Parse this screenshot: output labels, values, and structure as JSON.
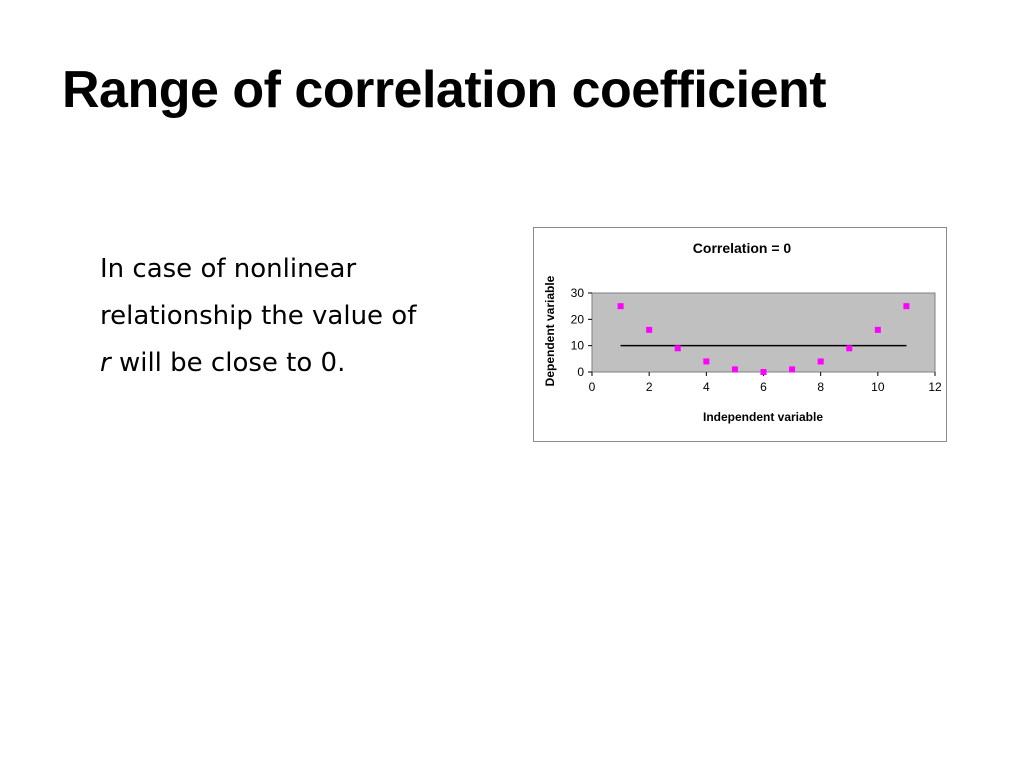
{
  "slide": {
    "title": "Range of correlation coefficient",
    "body_line1": "In case of nonlinear",
    "body_line2": "relationship the value of",
    "body_italic": "r",
    "body_line3_rest": " will be close to 0."
  },
  "chart_data": {
    "type": "scatter",
    "title": "Correlation = 0",
    "xlabel": "Independent variable",
    "ylabel": "Dependent variable",
    "xlim": [
      0,
      12
    ],
    "ylim": [
      0,
      30
    ],
    "xticks": [
      0,
      2,
      4,
      6,
      8,
      10,
      12
    ],
    "yticks": [
      0,
      10,
      20,
      30
    ],
    "plot_background": "#c0c0c0",
    "marker_color": "#ff00ff",
    "line_color": "#000000",
    "grid": false,
    "points": {
      "x": [
        1,
        2,
        3,
        4,
        5,
        6,
        7,
        8,
        9,
        10,
        11
      ],
      "y": [
        25,
        16,
        9,
        4,
        1,
        0,
        1,
        4,
        9,
        16,
        25
      ]
    },
    "trend_line": {
      "x": [
        1,
        11
      ],
      "y": [
        10,
        10
      ]
    }
  }
}
